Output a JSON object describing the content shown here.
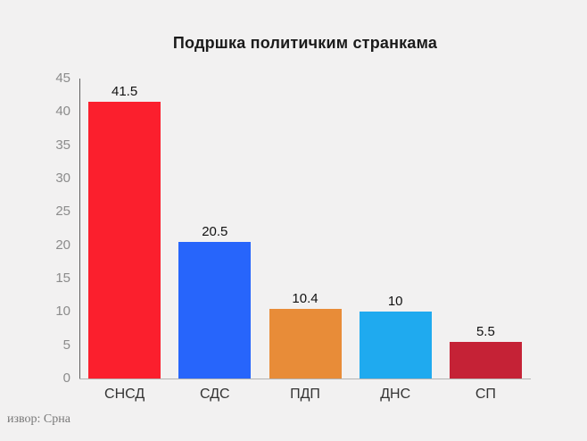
{
  "page": {
    "background": "#f2f1f1",
    "source_note": "извор: Срна"
  },
  "chart_data": {
    "type": "bar",
    "title": "Подршка политичким странкама",
    "categories": [
      "СНСД",
      "СДС",
      "ПДП",
      "ДНС",
      "СП"
    ],
    "values": [
      41.5,
      20.5,
      10.4,
      10,
      5.5
    ],
    "value_labels": [
      "41.5",
      "20.5",
      "10.4",
      "10",
      "5.5"
    ],
    "bar_colors": [
      "#fb1f2d",
      "#2765fb",
      "#e88c38",
      "#1faaef",
      "#c52236"
    ],
    "xlabel": "",
    "ylabel": "",
    "ylim": [
      0,
      45
    ],
    "yticks": [
      0,
      5,
      10,
      15,
      20,
      25,
      30,
      35,
      40,
      45
    ],
    "grid": false,
    "legend": "none",
    "background_color": "#f2f1f1",
    "axis_line_color": "#5f5f5f",
    "baseline_color": "#b3b3b3",
    "tick_label_color": "#8b8b8b"
  }
}
